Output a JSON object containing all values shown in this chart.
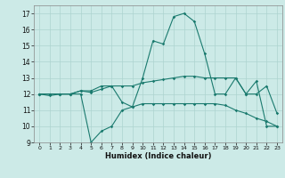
{
  "title": "",
  "xlabel": "Humidex (Indice chaleur)",
  "bg_color": "#cceae7",
  "grid_color": "#add4d0",
  "line_color": "#1a7a6e",
  "xlim": [
    -0.5,
    23.5
  ],
  "ylim": [
    9,
    17.5
  ],
  "xticks": [
    0,
    1,
    2,
    3,
    4,
    5,
    6,
    7,
    8,
    9,
    10,
    11,
    12,
    13,
    14,
    15,
    16,
    17,
    18,
    19,
    20,
    21,
    22,
    23
  ],
  "yticks": [
    9,
    10,
    11,
    12,
    13,
    14,
    15,
    16,
    17
  ],
  "line1_x": [
    0,
    1,
    2,
    3,
    4,
    5,
    6,
    7,
    8,
    9,
    10,
    11,
    12,
    13,
    14,
    15,
    16,
    17,
    18,
    19,
    20,
    21,
    22,
    23
  ],
  "line1_y": [
    12,
    12,
    12,
    12,
    12,
    9,
    9.7,
    10,
    11,
    11.2,
    13,
    15.3,
    15.1,
    16.8,
    17.0,
    16.5,
    14.5,
    12,
    12,
    13,
    12,
    12.8,
    10,
    10
  ],
  "line2_x": [
    0,
    1,
    2,
    3,
    4,
    5,
    6,
    7,
    8,
    9,
    10,
    11,
    12,
    13,
    14,
    15,
    16,
    17,
    18,
    19,
    20,
    21,
    22,
    23
  ],
  "line2_y": [
    12,
    11.9,
    12,
    12,
    12.2,
    12.1,
    12.3,
    12.5,
    11.5,
    11.2,
    11.4,
    11.4,
    11.4,
    11.4,
    11.4,
    11.4,
    11.4,
    11.4,
    11.3,
    11.0,
    10.8,
    10.5,
    10.3,
    10.0
  ],
  "line3_x": [
    0,
    1,
    2,
    3,
    4,
    5,
    6,
    7,
    8,
    9,
    10,
    11,
    12,
    13,
    14,
    15,
    16,
    17,
    18,
    19,
    20,
    21,
    22,
    23
  ],
  "line3_y": [
    12,
    12,
    12,
    12,
    12.2,
    12.2,
    12.5,
    12.5,
    12.5,
    12.5,
    12.7,
    12.8,
    12.9,
    13.0,
    13.1,
    13.1,
    13.0,
    13.0,
    13.0,
    13.0,
    12.0,
    12.0,
    12.5,
    10.8
  ]
}
